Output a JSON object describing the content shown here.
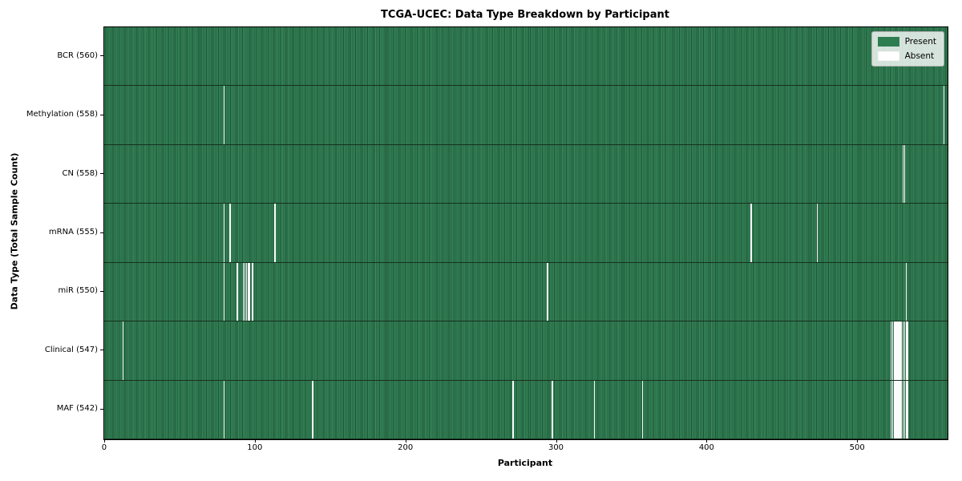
{
  "chart_data": {
    "type": "heatmap",
    "title": "TCGA-UCEC: Data Type Breakdown by Participant",
    "xlabel": "Participant",
    "ylabel": "Data Type (Total Sample Count)",
    "x_ticks": [
      0,
      100,
      200,
      300,
      400,
      500
    ],
    "n_participants": 560,
    "grid": false,
    "legend_position": "upper right",
    "legend": {
      "present": "Present",
      "absent": "Absent"
    },
    "colors": {
      "present": "#2e7d50",
      "absent": "#ffffff"
    },
    "rows": [
      {
        "label": "BCR (560)",
        "data_type": "BCR",
        "present_count": 560,
        "absent_participants": []
      },
      {
        "label": "Methylation (558)",
        "data_type": "Methylation",
        "present_count": 558,
        "absent_participants": [
          79,
          557
        ]
      },
      {
        "label": "CN (558)",
        "data_type": "CN",
        "present_count": 558,
        "absent_participants": [
          530,
          531
        ]
      },
      {
        "label": "mRNA (555)",
        "data_type": "mRNA",
        "present_count": 555,
        "absent_participants": [
          79,
          83,
          113,
          429,
          473
        ]
      },
      {
        "label": "miR (550)",
        "data_type": "miR",
        "present_count": 550,
        "absent_participants": [
          79,
          88,
          92,
          93,
          94,
          95,
          96,
          98,
          294,
          532
        ]
      },
      {
        "label": "Clinical (547)",
        "data_type": "Clinical",
        "present_count": 547,
        "absent_participants": [
          12,
          522,
          523,
          524,
          525,
          526,
          527,
          528,
          529,
          530,
          531,
          532,
          533
        ]
      },
      {
        "label": "MAF (542)",
        "data_type": "MAF",
        "present_count": 542,
        "absent_participants": [
          79,
          138,
          271,
          297,
          325,
          357,
          522,
          523,
          524,
          525,
          526,
          527,
          528,
          529,
          530,
          531,
          532,
          533
        ]
      }
    ]
  }
}
